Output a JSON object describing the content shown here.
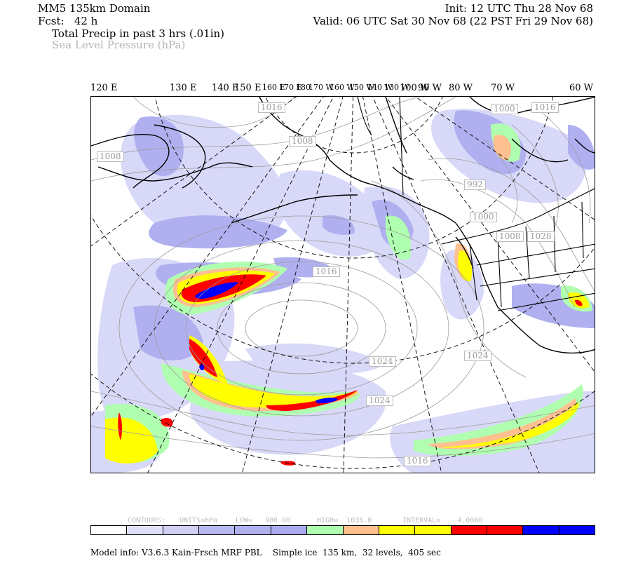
{
  "header": {
    "domain": "MM5 135km Domain",
    "fcst": "Fcst:   42 h",
    "field1": "Total Precip in past 3 hrs (.01in)",
    "field2": "Sea Level Pressure (hPa)",
    "init": "Init: 12 UTC Thu 28 Nov 68",
    "valid": "Valid: 06 UTC Sat 30 Nov 68 (22 PST Fri 29 Nov 68)"
  },
  "longitude_labels": [
    "120 E",
    "130 E",
    "140 E",
    "150 E",
    "160 E",
    "170 E",
    "180",
    "170 W",
    "160 W",
    "150 W",
    "140 W",
    "130 W",
    "120 W",
    "110 W",
    "100 W",
    "90 W",
    "80 W",
    "70 W",
    "60 W"
  ],
  "isobar_labels": [
    "1016",
    "1008",
    "1008",
    "1000",
    "1016",
    "992",
    "1000",
    "1008",
    "1028",
    "1016",
    "1024",
    "1024",
    "1024",
    "1016"
  ],
  "contour_info": {
    "contours": "CONTOURS:",
    "units": "UNITS=hPa",
    "low": "LOW=   980.00",
    "high": "HIGH=  1036.0",
    "interval": "INTERVAL=    4.0000"
  },
  "colorbar": [
    "#ffffff",
    "#e0e0f8",
    "#d0d0f4",
    "#b8b8f0",
    "#b0b0ee",
    "#aaaaee",
    "#b0ffb0",
    "#ffc090",
    "#ffff00",
    "#ffff00",
    "#ff0000",
    "#ff0000",
    "#0000ff",
    "#0000ff"
  ],
  "colors": {
    "light_lavender": "#d8d8f8",
    "lavender": "#b0b0f0",
    "green": "#b0ffb0",
    "orange": "#ffc090",
    "yellow": "#ffff00",
    "red": "#ff0000",
    "blue": "#0000ff"
  },
  "footer": "Model info: V3.6.3 Kain-Frsch MRF PBL    Simple ice  135 km,  32 levels,  405 sec"
}
